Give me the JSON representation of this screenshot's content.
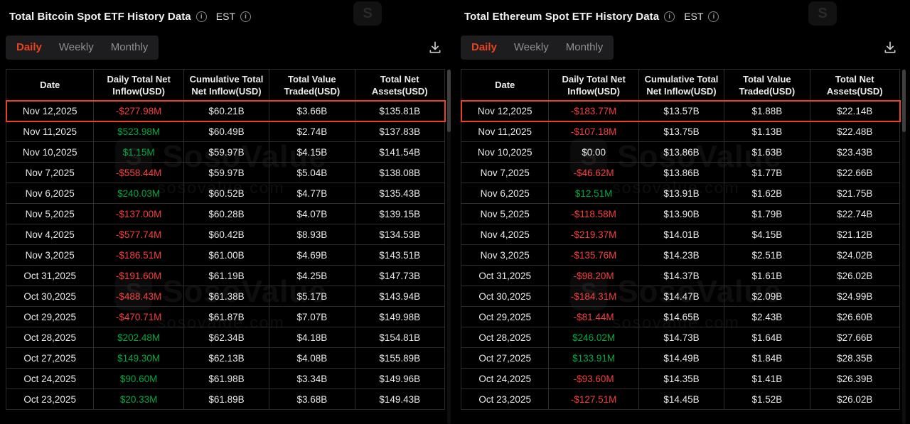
{
  "colors": {
    "background": "#000000",
    "accent": "#e8431f",
    "positive": "#00a843",
    "negative": "#f53f3f",
    "text": "#e8e8e8",
    "muted": "#8f8f8f",
    "border": "#2c2c2c"
  },
  "icons": {
    "info_glyph": "i"
  },
  "watermark": {
    "brand": "SosoValue",
    "domain": "sosovalue.com",
    "logo_glyph": "S"
  },
  "panels": [
    {
      "title": "Total Bitcoin Spot ETF History Data",
      "timezone": "EST",
      "tabs": [
        "Daily",
        "Weekly",
        "Monthly"
      ],
      "active_tab": "Daily",
      "columns": [
        "Date",
        "Daily Total Net Inflow(USD)",
        "Cumulative Total Net Inflow(USD)",
        "Total Value Traded(USD)",
        "Total Net Assets(USD)"
      ],
      "rows": [
        {
          "date": "Nov 12,2025",
          "daily_net_inflow": "-$277.98M",
          "inflow_color": "negative",
          "cumulative_net_inflow": "$60.21B",
          "value_traded": "$3.66B",
          "net_assets": "$135.81B",
          "highlighted": true
        },
        {
          "date": "Nov 11,2025",
          "daily_net_inflow": "$523.98M",
          "inflow_color": "positive",
          "cumulative_net_inflow": "$60.49B",
          "value_traded": "$2.74B",
          "net_assets": "$137.83B",
          "highlighted": false
        },
        {
          "date": "Nov 10,2025",
          "daily_net_inflow": "$1.15M",
          "inflow_color": "positive",
          "cumulative_net_inflow": "$59.97B",
          "value_traded": "$4.15B",
          "net_assets": "$141.54B",
          "highlighted": false
        },
        {
          "date": "Nov 7,2025",
          "daily_net_inflow": "-$558.44M",
          "inflow_color": "negative",
          "cumulative_net_inflow": "$59.97B",
          "value_traded": "$5.04B",
          "net_assets": "$138.08B",
          "highlighted": false
        },
        {
          "date": "Nov 6,2025",
          "daily_net_inflow": "$240.03M",
          "inflow_color": "positive",
          "cumulative_net_inflow": "$60.52B",
          "value_traded": "$4.77B",
          "net_assets": "$135.43B",
          "highlighted": false
        },
        {
          "date": "Nov 5,2025",
          "daily_net_inflow": "-$137.00M",
          "inflow_color": "negative",
          "cumulative_net_inflow": "$60.28B",
          "value_traded": "$4.07B",
          "net_assets": "$139.15B",
          "highlighted": false
        },
        {
          "date": "Nov 4,2025",
          "daily_net_inflow": "-$577.74M",
          "inflow_color": "negative",
          "cumulative_net_inflow": "$60.42B",
          "value_traded": "$8.93B",
          "net_assets": "$134.53B",
          "highlighted": false
        },
        {
          "date": "Nov 3,2025",
          "daily_net_inflow": "-$186.51M",
          "inflow_color": "negative",
          "cumulative_net_inflow": "$61.00B",
          "value_traded": "$4.69B",
          "net_assets": "$143.51B",
          "highlighted": false
        },
        {
          "date": "Oct 31,2025",
          "daily_net_inflow": "-$191.60M",
          "inflow_color": "negative",
          "cumulative_net_inflow": "$61.19B",
          "value_traded": "$4.25B",
          "net_assets": "$147.73B",
          "highlighted": false
        },
        {
          "date": "Oct 30,2025",
          "daily_net_inflow": "-$488.43M",
          "inflow_color": "negative",
          "cumulative_net_inflow": "$61.38B",
          "value_traded": "$5.17B",
          "net_assets": "$143.94B",
          "highlighted": false
        },
        {
          "date": "Oct 29,2025",
          "daily_net_inflow": "-$470.71M",
          "inflow_color": "negative",
          "cumulative_net_inflow": "$61.87B",
          "value_traded": "$7.07B",
          "net_assets": "$149.98B",
          "highlighted": false
        },
        {
          "date": "Oct 28,2025",
          "daily_net_inflow": "$202.48M",
          "inflow_color": "positive",
          "cumulative_net_inflow": "$62.34B",
          "value_traded": "$4.18B",
          "net_assets": "$154.81B",
          "highlighted": false
        },
        {
          "date": "Oct 27,2025",
          "daily_net_inflow": "$149.30M",
          "inflow_color": "positive",
          "cumulative_net_inflow": "$62.13B",
          "value_traded": "$4.08B",
          "net_assets": "$155.89B",
          "highlighted": false
        },
        {
          "date": "Oct 24,2025",
          "daily_net_inflow": "$90.60M",
          "inflow_color": "positive",
          "cumulative_net_inflow": "$61.98B",
          "value_traded": "$3.34B",
          "net_assets": "$149.96B",
          "highlighted": false
        },
        {
          "date": "Oct 23,2025",
          "daily_net_inflow": "$20.33M",
          "inflow_color": "positive",
          "cumulative_net_inflow": "$61.89B",
          "value_traded": "$3.68B",
          "net_assets": "$149.43B",
          "highlighted": false
        }
      ]
    },
    {
      "title": "Total Ethereum Spot ETF History Data",
      "timezone": "EST",
      "tabs": [
        "Daily",
        "Weekly",
        "Monthly"
      ],
      "active_tab": "Daily",
      "columns": [
        "Date",
        "Daily Total Net Inflow(USD)",
        "Cumulative Total Net Inflow(USD)",
        "Total Value Traded(USD)",
        "Total Net Assets(USD)"
      ],
      "rows": [
        {
          "date": "Nov 12,2025",
          "daily_net_inflow": "-$183.77M",
          "inflow_color": "negative",
          "cumulative_net_inflow": "$13.57B",
          "value_traded": "$1.88B",
          "net_assets": "$22.14B",
          "highlighted": true
        },
        {
          "date": "Nov 11,2025",
          "daily_net_inflow": "-$107.18M",
          "inflow_color": "negative",
          "cumulative_net_inflow": "$13.75B",
          "value_traded": "$1.13B",
          "net_assets": "$22.48B",
          "highlighted": false
        },
        {
          "date": "Nov 10,2025",
          "daily_net_inflow": "$0.00",
          "inflow_color": "neutral",
          "cumulative_net_inflow": "$13.86B",
          "value_traded": "$1.63B",
          "net_assets": "$23.43B",
          "highlighted": false
        },
        {
          "date": "Nov 7,2025",
          "daily_net_inflow": "-$46.62M",
          "inflow_color": "negative",
          "cumulative_net_inflow": "$13.86B",
          "value_traded": "$1.77B",
          "net_assets": "$22.66B",
          "highlighted": false
        },
        {
          "date": "Nov 6,2025",
          "daily_net_inflow": "$12.51M",
          "inflow_color": "positive",
          "cumulative_net_inflow": "$13.91B",
          "value_traded": "$1.62B",
          "net_assets": "$21.75B",
          "highlighted": false
        },
        {
          "date": "Nov 5,2025",
          "daily_net_inflow": "-$118.58M",
          "inflow_color": "negative",
          "cumulative_net_inflow": "$13.90B",
          "value_traded": "$1.79B",
          "net_assets": "$22.74B",
          "highlighted": false
        },
        {
          "date": "Nov 4,2025",
          "daily_net_inflow": "-$219.37M",
          "inflow_color": "negative",
          "cumulative_net_inflow": "$14.01B",
          "value_traded": "$4.15B",
          "net_assets": "$21.12B",
          "highlighted": false
        },
        {
          "date": "Nov 3,2025",
          "daily_net_inflow": "-$135.76M",
          "inflow_color": "negative",
          "cumulative_net_inflow": "$14.23B",
          "value_traded": "$2.51B",
          "net_assets": "$24.02B",
          "highlighted": false
        },
        {
          "date": "Oct 31,2025",
          "daily_net_inflow": "-$98.20M",
          "inflow_color": "negative",
          "cumulative_net_inflow": "$14.37B",
          "value_traded": "$1.61B",
          "net_assets": "$26.02B",
          "highlighted": false
        },
        {
          "date": "Oct 30,2025",
          "daily_net_inflow": "-$184.31M",
          "inflow_color": "negative",
          "cumulative_net_inflow": "$14.47B",
          "value_traded": "$2.09B",
          "net_assets": "$24.99B",
          "highlighted": false
        },
        {
          "date": "Oct 29,2025",
          "daily_net_inflow": "-$81.44M",
          "inflow_color": "negative",
          "cumulative_net_inflow": "$14.65B",
          "value_traded": "$2.43B",
          "net_assets": "$26.60B",
          "highlighted": false
        },
        {
          "date": "Oct 28,2025",
          "daily_net_inflow": "$246.02M",
          "inflow_color": "positive",
          "cumulative_net_inflow": "$14.73B",
          "value_traded": "$1.64B",
          "net_assets": "$27.66B",
          "highlighted": false
        },
        {
          "date": "Oct 27,2025",
          "daily_net_inflow": "$133.91M",
          "inflow_color": "positive",
          "cumulative_net_inflow": "$14.49B",
          "value_traded": "$1.84B",
          "net_assets": "$28.35B",
          "highlighted": false
        },
        {
          "date": "Oct 24,2025",
          "daily_net_inflow": "-$93.60M",
          "inflow_color": "negative",
          "cumulative_net_inflow": "$14.35B",
          "value_traded": "$1.41B",
          "net_assets": "$26.39B",
          "highlighted": false
        },
        {
          "date": "Oct 23,2025",
          "daily_net_inflow": "-$127.51M",
          "inflow_color": "negative",
          "cumulative_net_inflow": "$14.45B",
          "value_traded": "$1.52B",
          "net_assets": "$26.02B",
          "highlighted": false
        }
      ]
    }
  ]
}
